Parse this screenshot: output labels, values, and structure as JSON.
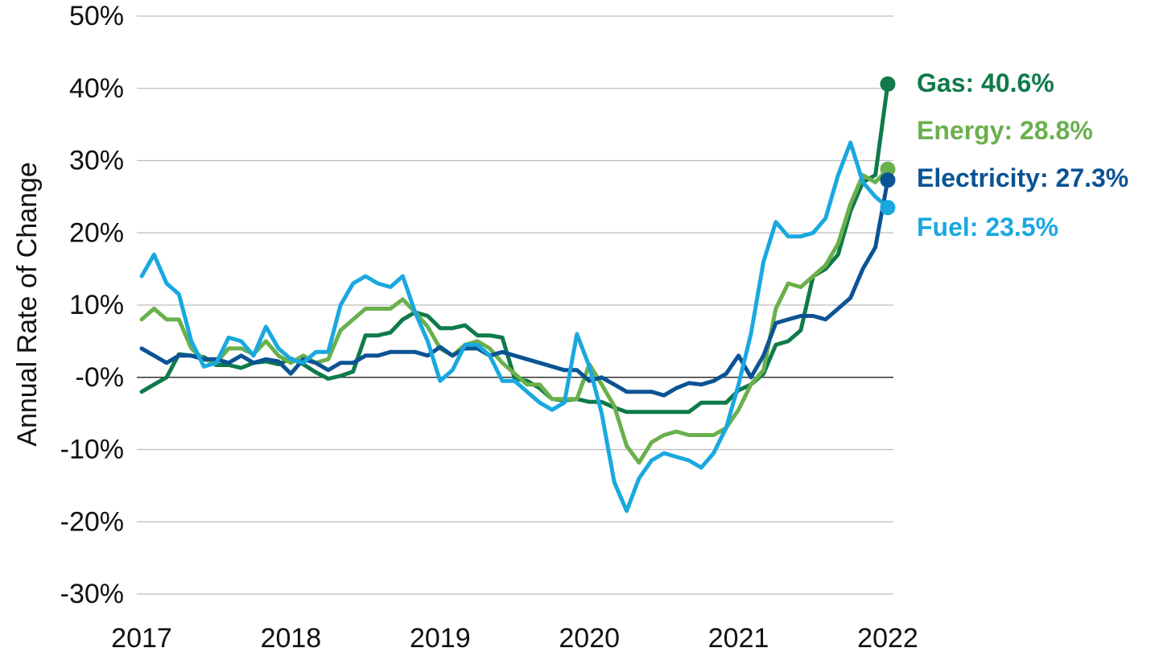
{
  "chart_data": {
    "type": "line",
    "ylabel": "Annual Rate of Change",
    "xlabel": "",
    "title": "",
    "ylim": [
      -30,
      50
    ],
    "xlim": [
      2017,
      2022
    ],
    "y_ticks": [
      -30,
      -20,
      -10,
      0,
      10,
      20,
      30,
      40,
      50
    ],
    "y_tick_labels": [
      "-30%",
      "-20%",
      "-10%",
      "-0%",
      "10%",
      "20%",
      "30%",
      "40%",
      "50%"
    ],
    "x_ticks": [
      2017,
      2018,
      2019,
      2020,
      2021,
      2022
    ],
    "x_tick_labels": [
      "2017",
      "2018",
      "2019",
      "2020",
      "2021",
      "2022"
    ],
    "grid": true,
    "series": [
      {
        "name": "Gas",
        "label": "Gas: 40.6%",
        "color": "#0f7a4a",
        "end_marker": true,
        "end_value": 40.6,
        "x": [
          2017.0,
          2017.083,
          2017.167,
          2017.25,
          2017.333,
          2017.417,
          2017.5,
          2017.583,
          2017.667,
          2017.75,
          2017.833,
          2017.917,
          2018.0,
          2018.083,
          2018.167,
          2018.25,
          2018.333,
          2018.417,
          2018.5,
          2018.583,
          2018.667,
          2018.75,
          2018.833,
          2018.917,
          2019.0,
          2019.083,
          2019.167,
          2019.25,
          2019.333,
          2019.417,
          2019.5,
          2019.583,
          2019.667,
          2019.75,
          2019.833,
          2019.917,
          2020.0,
          2020.083,
          2020.167,
          2020.25,
          2020.333,
          2020.417,
          2020.5,
          2020.583,
          2020.667,
          2020.75,
          2020.833,
          2020.917,
          2021.0,
          2021.083,
          2021.167,
          2021.25,
          2021.333,
          2021.417,
          2021.5,
          2021.583,
          2021.667,
          2021.75,
          2021.833,
          2021.917,
          2022.0
        ],
        "values": [
          -2.0,
          -1.0,
          0.0,
          3.2,
          3.0,
          2.8,
          1.7,
          1.7,
          1.3,
          2.0,
          2.2,
          1.8,
          2.6,
          1.8,
          0.7,
          -0.2,
          0.2,
          0.8,
          5.8,
          5.8,
          6.2,
          8.0,
          9.0,
          8.5,
          6.8,
          6.8,
          7.2,
          5.8,
          5.8,
          5.5,
          -0.2,
          -0.5,
          -1.5,
          -3.0,
          -3.2,
          -3.0,
          -3.4,
          -3.4,
          -4.2,
          -4.8,
          -4.8,
          -4.8,
          -4.8,
          -4.8,
          -4.8,
          -3.5,
          -3.5,
          -3.5,
          -1.8,
          -1.0,
          0.5,
          4.5,
          5.0,
          6.5,
          14.0,
          15.0,
          17.0,
          23.0,
          27.0,
          28.0,
          40.6
        ]
      },
      {
        "name": "Energy",
        "label": "Energy: 28.8%",
        "color": "#6ab04c",
        "end_marker": true,
        "end_value": 28.8,
        "x": [
          2017.0,
          2017.083,
          2017.167,
          2017.25,
          2017.333,
          2017.417,
          2017.5,
          2017.583,
          2017.667,
          2017.75,
          2017.833,
          2017.917,
          2018.0,
          2018.083,
          2018.167,
          2018.25,
          2018.333,
          2018.417,
          2018.5,
          2018.583,
          2018.667,
          2018.75,
          2018.833,
          2018.917,
          2019.0,
          2019.083,
          2019.167,
          2019.25,
          2019.333,
          2019.417,
          2019.5,
          2019.583,
          2019.667,
          2019.75,
          2019.833,
          2019.917,
          2020.0,
          2020.083,
          2020.167,
          2020.25,
          2020.333,
          2020.417,
          2020.5,
          2020.583,
          2020.667,
          2020.75,
          2020.833,
          2020.917,
          2021.0,
          2021.083,
          2021.167,
          2021.25,
          2021.333,
          2021.417,
          2021.5,
          2021.583,
          2021.667,
          2021.75,
          2021.833,
          2021.917,
          2022.0
        ],
        "values": [
          8.0,
          9.5,
          8.0,
          8.0,
          4.0,
          2.5,
          2.0,
          4.0,
          4.0,
          3.2,
          5.0,
          3.0,
          2.0,
          3.0,
          2.0,
          2.5,
          6.5,
          8.0,
          9.5,
          9.5,
          9.5,
          10.8,
          9.0,
          7.0,
          4.0,
          3.0,
          4.5,
          5.0,
          4.0,
          2.0,
          0.5,
          -1.0,
          -1.0,
          -3.0,
          -3.0,
          -3.0,
          1.8,
          -1.0,
          -4.0,
          -9.5,
          -11.8,
          -9.0,
          -8.0,
          -7.5,
          -8.0,
          -8.0,
          -8.0,
          -7.0,
          -4.5,
          -1.0,
          1.0,
          9.5,
          13.0,
          12.5,
          14.0,
          15.5,
          18.5,
          24.0,
          28.0,
          27.0,
          28.8
        ]
      },
      {
        "name": "Electricity",
        "label": "Electricity: 27.3%",
        "color": "#0b5394",
        "end_marker": true,
        "end_value": 27.3,
        "x": [
          2017.0,
          2017.083,
          2017.167,
          2017.25,
          2017.333,
          2017.417,
          2017.5,
          2017.583,
          2017.667,
          2017.75,
          2017.833,
          2017.917,
          2018.0,
          2018.083,
          2018.167,
          2018.25,
          2018.333,
          2018.417,
          2018.5,
          2018.583,
          2018.667,
          2018.75,
          2018.833,
          2018.917,
          2019.0,
          2019.083,
          2019.167,
          2019.25,
          2019.333,
          2019.417,
          2019.5,
          2019.583,
          2019.667,
          2019.75,
          2019.833,
          2019.917,
          2020.0,
          2020.083,
          2020.167,
          2020.25,
          2020.333,
          2020.417,
          2020.5,
          2020.583,
          2020.667,
          2020.75,
          2020.833,
          2020.917,
          2021.0,
          2021.083,
          2021.167,
          2021.25,
          2021.333,
          2021.417,
          2021.5,
          2021.583,
          2021.667,
          2021.75,
          2021.833,
          2021.917,
          2022.0
        ],
        "values": [
          4.0,
          3.0,
          2.0,
          3.0,
          3.0,
          2.5,
          2.5,
          2.0,
          3.0,
          2.0,
          2.5,
          2.2,
          0.5,
          2.5,
          2.0,
          1.0,
          2.0,
          2.0,
          3.0,
          3.0,
          3.5,
          3.5,
          3.5,
          3.0,
          4.2,
          3.0,
          4.0,
          4.0,
          3.0,
          3.5,
          3.0,
          2.5,
          2.0,
          1.5,
          1.0,
          1.0,
          -0.5,
          0.0,
          -1.0,
          -2.0,
          -2.0,
          -2.0,
          -2.5,
          -1.5,
          -0.8,
          -1.0,
          -0.5,
          0.5,
          3.0,
          0.0,
          3.0,
          7.5,
          8.0,
          8.5,
          8.5,
          8.0,
          9.5,
          11.0,
          15.0,
          18.0,
          27.3
        ]
      },
      {
        "name": "Fuel",
        "label": "Fuel: 23.5%",
        "color": "#19a8e0",
        "end_marker": true,
        "end_value": 23.5,
        "x": [
          2017.0,
          2017.083,
          2017.167,
          2017.25,
          2017.333,
          2017.417,
          2017.5,
          2017.583,
          2017.667,
          2017.75,
          2017.833,
          2017.917,
          2018.0,
          2018.083,
          2018.167,
          2018.25,
          2018.333,
          2018.417,
          2018.5,
          2018.583,
          2018.667,
          2018.75,
          2018.833,
          2018.917,
          2019.0,
          2019.083,
          2019.167,
          2019.25,
          2019.333,
          2019.417,
          2019.5,
          2019.583,
          2019.667,
          2019.75,
          2019.833,
          2019.917,
          2020.0,
          2020.083,
          2020.167,
          2020.25,
          2020.333,
          2020.417,
          2020.5,
          2020.583,
          2020.667,
          2020.75,
          2020.833,
          2020.917,
          2021.0,
          2021.083,
          2021.167,
          2021.25,
          2021.333,
          2021.417,
          2021.5,
          2021.583,
          2021.667,
          2021.75,
          2021.833,
          2021.917,
          2022.0
        ],
        "values": [
          14.0,
          17.0,
          13.0,
          11.5,
          5.0,
          1.5,
          2.0,
          5.5,
          5.0,
          3.0,
          7.0,
          4.0,
          2.5,
          2.0,
          3.5,
          3.5,
          10.0,
          13.0,
          14.0,
          13.0,
          12.5,
          14.0,
          9.0,
          5.0,
          -0.5,
          1.0,
          4.5,
          4.5,
          3.0,
          -0.5,
          -0.5,
          -2.0,
          -3.5,
          -4.5,
          -3.5,
          6.0,
          1.5,
          -5.0,
          -14.5,
          -18.5,
          -14.0,
          -11.5,
          -10.5,
          -11.0,
          -11.5,
          -12.5,
          -10.5,
          -7.0,
          -1.0,
          6.0,
          16.0,
          21.5,
          19.5,
          19.5,
          20.0,
          22.0,
          28.0,
          32.5,
          27.0,
          25.0,
          23.5
        ]
      }
    ]
  }
}
